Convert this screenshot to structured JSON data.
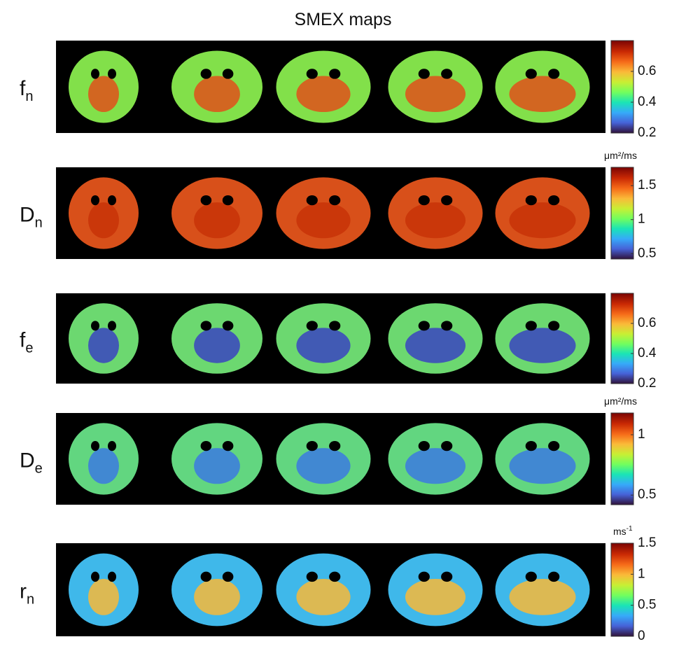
{
  "title": "SMEX maps",
  "rows": [
    {
      "label": {
        "base": "f",
        "sub": "n"
      },
      "colorbar": {
        "lim": [
          0.2,
          0.8
        ],
        "ticks": [
          0.2,
          0.4,
          0.6
        ]
      }
    },
    {
      "label": {
        "base": "D",
        "sub": "n"
      },
      "colorbar": {
        "unit": "μm²/ms",
        "lim": [
          0.42,
          1.77
        ],
        "ticks": [
          0.5,
          1,
          1.5
        ]
      }
    },
    {
      "label": {
        "base": "f",
        "sub": "e"
      },
      "colorbar": {
        "lim": [
          0.2,
          0.8
        ],
        "ticks": [
          0.2,
          0.4,
          0.6
        ]
      }
    },
    {
      "label": {
        "base": "D",
        "sub": "e"
      },
      "colorbar": {
        "unit": "μm²/ms",
        "lim": [
          0.42,
          1.18
        ],
        "ticks": [
          0.5,
          1
        ]
      }
    },
    {
      "label": {
        "base": "r",
        "sub": "n"
      },
      "colorbar": {
        "unit": {
          "base": "ms",
          "sup": "-1"
        },
        "lim": [
          0,
          1.5
        ],
        "ticks": [
          0,
          0.5,
          1,
          1.5
        ]
      }
    }
  ]
}
